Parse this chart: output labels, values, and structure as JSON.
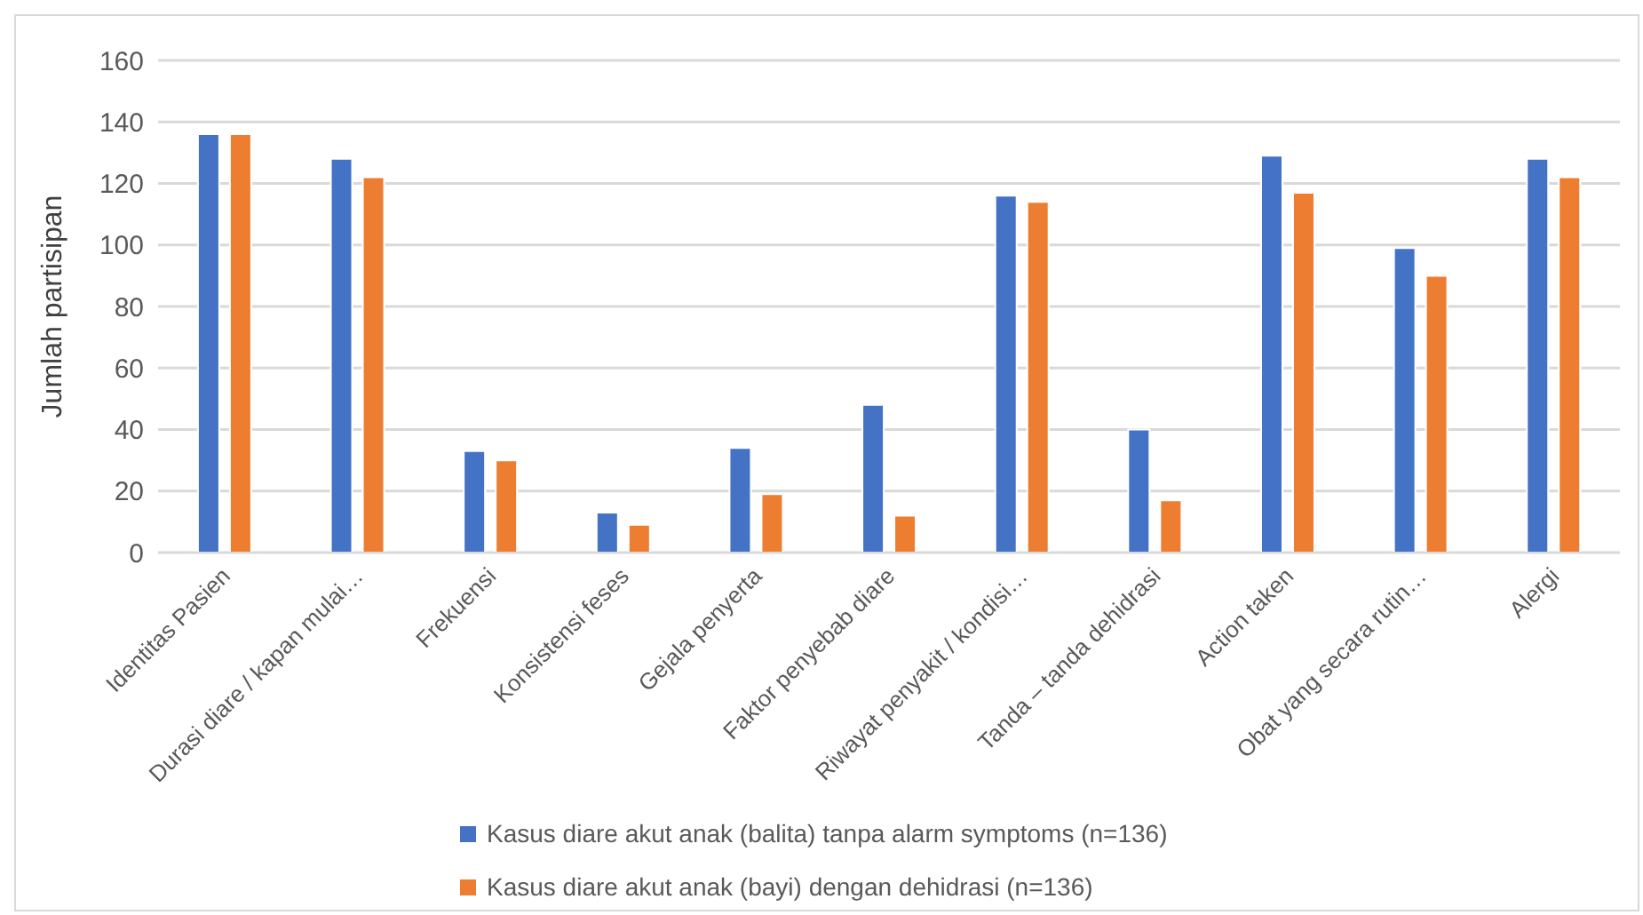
{
  "chart_data": {
    "type": "bar",
    "ylabel": "Jumlah partisipan",
    "categories": [
      "Identitas Pasien",
      "Durasi diare / kapan mulai…",
      "Frekuensi",
      "Konsistensi feses",
      "Gejala penyerta",
      "Faktor penyebab diare",
      "Riwayat penyakit / kondisi…",
      "Tanda – tanda dehidrasi",
      "Action taken",
      "Obat yang secara rutin…",
      "Alergi"
    ],
    "series": [
      {
        "name": "Kasus diare akut anak (balita) tanpa alarm symptoms (n=136)",
        "color": "#4472c4",
        "values": [
          136,
          128,
          33,
          13,
          34,
          48,
          116,
          40,
          129,
          99,
          128
        ]
      },
      {
        "name": "Kasus diare akut anak (bayi) dengan dehidrasi (n=136)",
        "color": "#ed7d31",
        "values": [
          136,
          122,
          30,
          9,
          19,
          12,
          114,
          17,
          117,
          90,
          122
        ]
      }
    ],
    "ylim": [
      0,
      160
    ],
    "yticks": [
      0,
      20,
      40,
      60,
      80,
      100,
      120,
      140,
      160
    ],
    "grid": "y",
    "legend": "bottom"
  }
}
